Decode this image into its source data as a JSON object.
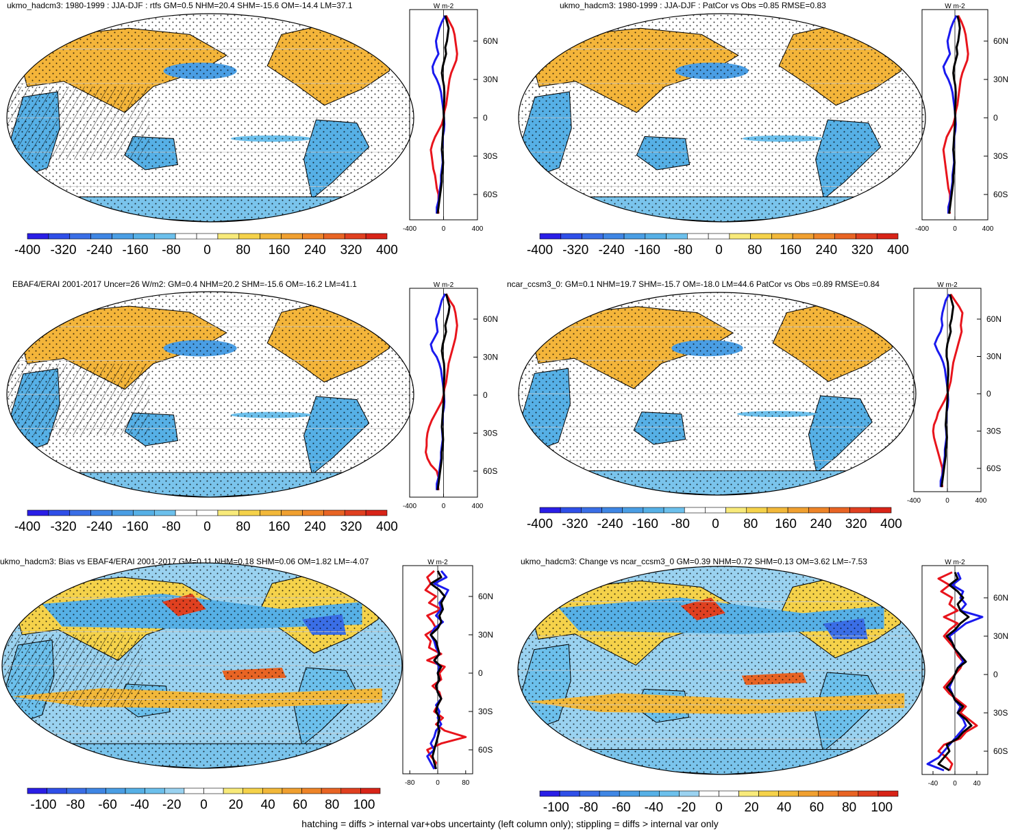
{
  "footer": "hatching = diffs > internal var+obs uncertainty (left column only); stippling = diffs > internal var only",
  "colors": {
    "palette_main": [
      "#2a1ee6",
      "#2f4fe8",
      "#3a6ee6",
      "#3f86e4",
      "#4a9ee4",
      "#56b0e6",
      "#6cc0ec",
      "#ffffff",
      "#ffffff",
      "#f8ea7a",
      "#f5d24a",
      "#f2b83a",
      "#f0a030",
      "#ee8428",
      "#e86424",
      "#e04020",
      "#d82418"
    ],
    "palette_diff": [
      "#2a1ee6",
      "#2f4fe8",
      "#3a6ee6",
      "#3f86e4",
      "#4a9ee4",
      "#56b0e6",
      "#6cc0ec",
      "#9ad2f0",
      "#ffffff",
      "#ffffff",
      "#f8ea7a",
      "#f5d24a",
      "#f2b83a",
      "#f0a030",
      "#ee8428",
      "#e86424",
      "#e04020",
      "#d82418"
    ],
    "ocean_land_map": "map",
    "line_model": "#e8141c",
    "line_blue": "#1a1aee",
    "line_mean": "#000000"
  },
  "chart_data": [
    {
      "type": "map",
      "title": "ukmo_hadcm3: 1980-1999 : JJA-DJF : rtfs GM=0.5 NHM=20.4 SHM=-15.6 OM=-14.4 LM=37.1",
      "colorbar": {
        "labels": [
          "-400",
          "-320",
          "-240",
          "-160",
          "-80",
          "0",
          "80",
          "160",
          "240",
          "320",
          "400"
        ],
        "range": [
          -400,
          400
        ]
      },
      "profile": {
        "unit": "W m-2",
        "xlim": [
          -400,
          400
        ],
        "xticks": [
          "-400",
          "0",
          "400"
        ],
        "yticks": [
          "60N",
          "30N",
          "0",
          "30S",
          "60S"
        ],
        "lat": [
          80,
          75,
          70,
          65,
          60,
          55,
          50,
          45,
          40,
          35,
          30,
          25,
          20,
          15,
          10,
          5,
          0,
          -5,
          -10,
          -15,
          -20,
          -25,
          -30,
          -35,
          -40,
          -45,
          -50,
          -55,
          -60,
          -65,
          -70,
          -75
        ],
        "red": [
          30,
          70,
          110,
          130,
          140,
          150,
          160,
          150,
          120,
          90,
          70,
          60,
          50,
          40,
          30,
          10,
          0,
          -20,
          -60,
          -100,
          -130,
          -150,
          -140,
          -130,
          -120,
          -100,
          -90,
          -80,
          -60,
          -60,
          -70,
          -60
        ],
        "blue": [
          20,
          -20,
          -50,
          -70,
          -90,
          -80,
          -60,
          -100,
          -130,
          -120,
          -80,
          -50,
          -30,
          -20,
          -10,
          0,
          5,
          10,
          5,
          -10,
          -10,
          -20,
          -15,
          -10,
          -20,
          -30,
          -30,
          -40,
          -50,
          -60,
          -80,
          -80
        ],
        "black": [
          20,
          40,
          60,
          50,
          40,
          20,
          30,
          10,
          -10,
          -20,
          -10,
          5,
          10,
          10,
          5,
          0,
          5,
          0,
          -5,
          -10,
          -15,
          -20,
          -10,
          -5,
          -10,
          -20,
          -20,
          -30,
          -40,
          -50,
          -60,
          -70
        ]
      }
    },
    {
      "type": "map",
      "title": "ukmo_hadcm3: 1980-1999 : JJA-DJF : PatCor vs Obs =0.85 RMSE=0.83",
      "colorbar": {
        "labels": [
          "-400",
          "-320",
          "-240",
          "-160",
          "-80",
          "0",
          "80",
          "160",
          "240",
          "320",
          "400"
        ],
        "range": [
          -400,
          400
        ]
      },
      "profile": {
        "unit": "W m-2",
        "xlim": [
          -400,
          400
        ],
        "xticks": [
          "-400",
          "0",
          "400"
        ],
        "yticks": [
          "60N",
          "30N",
          "0",
          "30S",
          "60S"
        ],
        "lat": [
          80,
          75,
          70,
          65,
          60,
          55,
          50,
          45,
          40,
          35,
          30,
          25,
          20,
          15,
          10,
          5,
          0,
          -5,
          -10,
          -15,
          -20,
          -25,
          -30,
          -35,
          -40,
          -45,
          -50,
          -55,
          -60,
          -65,
          -70,
          -75
        ],
        "red": [
          40,
          80,
          110,
          130,
          140,
          150,
          160,
          150,
          120,
          90,
          70,
          60,
          50,
          40,
          30,
          10,
          0,
          -20,
          -60,
          -100,
          -120,
          -140,
          -130,
          -120,
          -110,
          -100,
          -90,
          -80,
          -60,
          -60,
          -80,
          -60
        ],
        "blue": [
          20,
          -20,
          -50,
          -70,
          -90,
          -80,
          -60,
          -100,
          -140,
          -120,
          -80,
          -50,
          -30,
          -20,
          -10,
          0,
          5,
          10,
          5,
          -10,
          -10,
          -20,
          -15,
          -10,
          -20,
          -30,
          -30,
          -40,
          -50,
          -60,
          -80,
          -80
        ],
        "black": [
          30,
          50,
          60,
          50,
          40,
          20,
          30,
          10,
          -10,
          -20,
          -10,
          5,
          10,
          10,
          5,
          0,
          5,
          0,
          -5,
          -10,
          -15,
          -20,
          -10,
          -5,
          -10,
          -20,
          -20,
          -30,
          -40,
          -50,
          -60,
          -70
        ]
      }
    },
    {
      "type": "map",
      "title": "EBAF4/ERAI 2001-2017 Uncer=26 W/m2: GM=0.4 NHM=20.2 SHM=-15.6 OM=-16.2 LM=41.1",
      "colorbar": {
        "labels": [
          "-400",
          "-320",
          "-240",
          "-160",
          "-80",
          "0",
          "80",
          "160",
          "240",
          "320",
          "400"
        ],
        "range": [
          -400,
          400
        ]
      },
      "profile": {
        "unit": "W m-2",
        "xlim": [
          -400,
          400
        ],
        "xticks": [
          "-400",
          "0",
          "400"
        ],
        "yticks": [
          "60N",
          "30N",
          "0",
          "30S",
          "60S"
        ],
        "lat": [
          80,
          75,
          70,
          65,
          60,
          55,
          50,
          45,
          40,
          35,
          30,
          25,
          20,
          15,
          10,
          5,
          0,
          -5,
          -10,
          -15,
          -20,
          -25,
          -30,
          -35,
          -40,
          -45,
          -50,
          -55,
          -60,
          -65,
          -70,
          -75
        ],
        "red": [
          30,
          70,
          120,
          140,
          150,
          160,
          150,
          140,
          120,
          100,
          80,
          60,
          50,
          40,
          30,
          10,
          0,
          -20,
          -60,
          -100,
          -140,
          -170,
          -190,
          -200,
          -200,
          -210,
          -190,
          -150,
          -80,
          -60,
          -70,
          -60
        ],
        "blue": [
          20,
          -20,
          -40,
          -60,
          -90,
          -80,
          -70,
          -110,
          -150,
          -130,
          -80,
          -50,
          -30,
          -20,
          -10,
          0,
          5,
          10,
          5,
          -10,
          -10,
          -20,
          -15,
          -10,
          -20,
          -30,
          -30,
          -40,
          -50,
          -60,
          -80,
          -80
        ],
        "black": [
          30,
          50,
          70,
          60,
          40,
          20,
          30,
          10,
          -10,
          -20,
          -10,
          5,
          10,
          10,
          5,
          0,
          5,
          0,
          -5,
          -10,
          -15,
          -20,
          -10,
          -5,
          -10,
          -20,
          -20,
          -30,
          -40,
          -50,
          -60,
          -70
        ]
      }
    },
    {
      "type": "map",
      "title": "ncar_ccsm3_0: GM=0.1 NHM=19.7 SHM=-15.7 OM=-18.0 LM=44.6 PatCor vs Obs =0.89 RMSE=0.84",
      "colorbar": {
        "labels": [
          "-400",
          "-320",
          "-240",
          "-160",
          "-80",
          "0",
          "80",
          "160",
          "240",
          "320",
          "400"
        ],
        "range": [
          -400,
          400
        ]
      },
      "profile": {
        "unit": "W m-2",
        "xlim": [
          -400,
          400
        ],
        "xticks": [
          "-400",
          "0",
          "400"
        ],
        "yticks": [
          "60N",
          "30N",
          "0",
          "30S",
          "60S"
        ],
        "lat": [
          80,
          75,
          70,
          65,
          60,
          55,
          50,
          45,
          40,
          35,
          30,
          25,
          20,
          15,
          10,
          5,
          0,
          -5,
          -10,
          -15,
          -20,
          -25,
          -30,
          -35,
          -40,
          -45,
          -50,
          -55,
          -60,
          -65,
          -70,
          -75
        ],
        "red": [
          40,
          90,
          140,
          180,
          170,
          160,
          170,
          150,
          130,
          110,
          90,
          70,
          60,
          50,
          40,
          20,
          0,
          -30,
          -70,
          -110,
          -130,
          -160,
          -170,
          -160,
          -140,
          -120,
          -100,
          -80,
          -60,
          -60,
          -70,
          -60
        ],
        "blue": [
          20,
          -20,
          -40,
          -60,
          -70,
          -60,
          -80,
          -120,
          -150,
          -120,
          -80,
          -50,
          -30,
          -20,
          -10,
          0,
          5,
          10,
          5,
          -10,
          -10,
          -20,
          -15,
          -10,
          -20,
          -30,
          -30,
          -40,
          -50,
          -60,
          -80,
          -80
        ],
        "black": [
          30,
          50,
          70,
          60,
          50,
          30,
          40,
          20,
          0,
          -10,
          -10,
          5,
          10,
          10,
          5,
          0,
          5,
          0,
          -5,
          -10,
          -15,
          -20,
          -10,
          -5,
          -10,
          -20,
          -20,
          -30,
          -40,
          -50,
          -60,
          -70
        ]
      }
    },
    {
      "type": "map",
      "title": "ukmo_hadcm3: Bias vs EBAF4/ERAI 2001-2017 GM=0.11 NHM=0.18 SHM=0.06 OM=1.82 LM=-4.07",
      "colorbar": {
        "labels": [
          "-100",
          "-80",
          "-60",
          "-40",
          "-20",
          "0",
          "20",
          "40",
          "60",
          "80",
          "100"
        ],
        "range": [
          -110,
          110
        ]
      },
      "profile": {
        "unit": "W m-2",
        "xlim": [
          -100,
          100
        ],
        "xticks": [
          "-80",
          "0",
          "80"
        ],
        "yticks": [
          "60N",
          "30N",
          "0",
          "30S",
          "60S"
        ],
        "lat": [
          80,
          75,
          70,
          65,
          60,
          55,
          50,
          45,
          40,
          35,
          30,
          25,
          20,
          15,
          10,
          5,
          0,
          -5,
          -10,
          -15,
          -20,
          -25,
          -30,
          -35,
          -40,
          -45,
          -50,
          -55,
          -60,
          -65,
          -70,
          -75
        ],
        "red": [
          -10,
          -30,
          -20,
          -35,
          -5,
          -25,
          10,
          -30,
          -15,
          -5,
          -35,
          -20,
          -25,
          10,
          -30,
          20,
          5,
          10,
          -15,
          5,
          10,
          0,
          -10,
          15,
          -5,
          20,
          80,
          10,
          -30,
          -20,
          -5,
          -10
        ],
        "blue": [
          10,
          25,
          -10,
          30,
          20,
          5,
          10,
          -5,
          15,
          -10,
          -20,
          -10,
          -5,
          5,
          -10,
          5,
          0,
          5,
          -5,
          0,
          10,
          -5,
          5,
          0,
          10,
          -5,
          -10,
          -20,
          -10,
          -30,
          -20,
          -10
        ],
        "black": [
          0,
          10,
          -20,
          5,
          20,
          10,
          15,
          5,
          10,
          0,
          -20,
          -5,
          0,
          5,
          -10,
          10,
          0,
          5,
          -5,
          0,
          10,
          0,
          -5,
          5,
          0,
          5,
          0,
          -5,
          -10,
          -15,
          -10,
          -5
        ]
      }
    },
    {
      "type": "map",
      "title": "ukmo_hadcm3: Change vs ncar_ccsm3_0 GM=0.39 NHM=0.72 SHM=0.13 OM=3.62 LM=-7.53",
      "colorbar": {
        "labels": [
          "-100",
          "-80",
          "-60",
          "-40",
          "-20",
          "0",
          "20",
          "40",
          "60",
          "80",
          "100"
        ],
        "range": [
          -110,
          110
        ]
      },
      "profile": {
        "unit": "W m-2",
        "xlim": [
          -60,
          60
        ],
        "xticks": [
          "-40",
          "0",
          "40"
        ],
        "yticks": [
          "60N",
          "30N",
          "0",
          "30S",
          "60S"
        ],
        "lat": [
          80,
          75,
          70,
          65,
          60,
          55,
          50,
          45,
          40,
          35,
          30,
          25,
          20,
          15,
          10,
          5,
          0,
          -5,
          -10,
          -15,
          -20,
          -25,
          -30,
          -35,
          -40,
          -45,
          -50,
          -55,
          -60,
          -65,
          -70,
          -75
        ],
        "red": [
          -5,
          -30,
          -10,
          -25,
          -5,
          -10,
          5,
          -20,
          5,
          -10,
          -20,
          -10,
          0,
          5,
          15,
          10,
          0,
          -10,
          -20,
          -10,
          5,
          20,
          10,
          25,
          40,
          20,
          10,
          -20,
          -30,
          -15,
          -5,
          -10
        ],
        "blue": [
          5,
          10,
          -5,
          15,
          10,
          20,
          10,
          50,
          20,
          5,
          -10,
          -5,
          0,
          10,
          15,
          5,
          0,
          -5,
          -10,
          -5,
          0,
          10,
          5,
          15,
          20,
          10,
          0,
          -10,
          -20,
          -30,
          -50,
          -20
        ],
        "black": [
          0,
          5,
          -10,
          5,
          15,
          5,
          10,
          25,
          10,
          0,
          -15,
          -5,
          0,
          10,
          20,
          5,
          0,
          -5,
          -15,
          -5,
          0,
          15,
          5,
          20,
          30,
          15,
          5,
          -15,
          -10,
          -20,
          -30,
          -10
        ]
      }
    }
  ]
}
